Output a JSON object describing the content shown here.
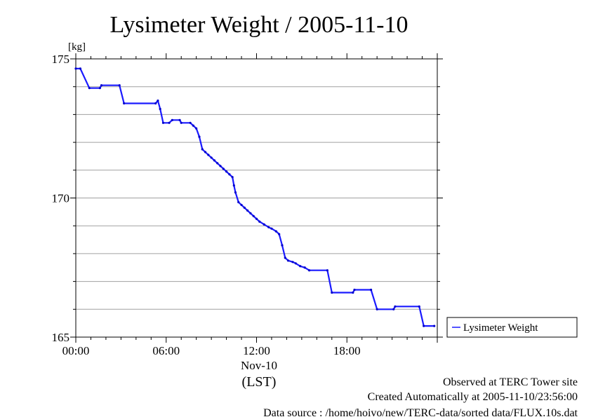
{
  "chart_data": {
    "type": "line",
    "title": "Lysimeter Weight / 2005-11-10",
    "ylabel": "[kg]",
    "xlabel_date": "Nov-10",
    "xlabel_tz": "(LST)",
    "xlim_hours": [
      0,
      24
    ],
    "ylim": [
      165,
      175
    ],
    "x_ticks": [
      {
        "value": 0,
        "label": "00:00"
      },
      {
        "value": 6,
        "label": "06:00"
      },
      {
        "value": 12,
        "label": "12:00"
      },
      {
        "value": 18,
        "label": "18:00"
      }
    ],
    "y_ticks": [
      {
        "value": 165,
        "label": "165"
      },
      {
        "value": 170,
        "label": "170"
      },
      {
        "value": 175,
        "label": "175"
      }
    ],
    "grid": true,
    "legend_position": "right",
    "color": "#1a1aff",
    "series": [
      {
        "name": "Lysimeter Weight",
        "points": [
          [
            0.0,
            174.65
          ],
          [
            0.3,
            174.65
          ],
          [
            0.9,
            173.95
          ],
          [
            1.6,
            173.95
          ],
          [
            1.7,
            174.05
          ],
          [
            2.9,
            174.05
          ],
          [
            3.2,
            173.4
          ],
          [
            5.3,
            173.4
          ],
          [
            5.45,
            173.5
          ],
          [
            5.6,
            173.2
          ],
          [
            5.8,
            172.7
          ],
          [
            6.2,
            172.7
          ],
          [
            6.4,
            172.8
          ],
          [
            6.9,
            172.8
          ],
          [
            7.0,
            172.7
          ],
          [
            7.6,
            172.7
          ],
          [
            7.8,
            172.6
          ],
          [
            8.0,
            172.5
          ],
          [
            8.2,
            172.2
          ],
          [
            8.4,
            171.75
          ],
          [
            8.6,
            171.65
          ],
          [
            8.8,
            171.55
          ],
          [
            9.0,
            171.45
          ],
          [
            9.2,
            171.35
          ],
          [
            9.4,
            171.25
          ],
          [
            9.6,
            171.15
          ],
          [
            9.8,
            171.05
          ],
          [
            10.0,
            170.95
          ],
          [
            10.2,
            170.85
          ],
          [
            10.4,
            170.75
          ],
          [
            10.5,
            170.45
          ],
          [
            10.6,
            170.2
          ],
          [
            10.8,
            169.85
          ],
          [
            11.0,
            169.75
          ],
          [
            11.2,
            169.65
          ],
          [
            11.4,
            169.55
          ],
          [
            11.6,
            169.45
          ],
          [
            11.8,
            169.35
          ],
          [
            12.0,
            169.25
          ],
          [
            12.2,
            169.15
          ],
          [
            12.5,
            169.05
          ],
          [
            12.8,
            168.95
          ],
          [
            13.0,
            168.9
          ],
          [
            13.3,
            168.8
          ],
          [
            13.5,
            168.7
          ],
          [
            13.7,
            168.3
          ],
          [
            13.9,
            167.85
          ],
          [
            14.1,
            167.75
          ],
          [
            14.4,
            167.7
          ],
          [
            14.6,
            167.65
          ],
          [
            14.9,
            167.55
          ],
          [
            15.2,
            167.5
          ],
          [
            15.5,
            167.4
          ],
          [
            16.7,
            167.4
          ],
          [
            17.0,
            166.6
          ],
          [
            18.4,
            166.6
          ],
          [
            18.5,
            166.7
          ],
          [
            19.6,
            166.7
          ],
          [
            20.0,
            166.0
          ],
          [
            21.1,
            166.0
          ],
          [
            21.2,
            166.1
          ],
          [
            22.8,
            166.1
          ],
          [
            23.1,
            165.4
          ],
          [
            23.8,
            165.4
          ]
        ]
      }
    ],
    "footer": {
      "line1": "Observed at TERC Tower site",
      "line2": "Created Automatically at 2005-11-10/23:56:00",
      "line3": "Data source : /home/hoivo/new/TERC-data/sorted  data/FLUX.10s.dat"
    }
  }
}
